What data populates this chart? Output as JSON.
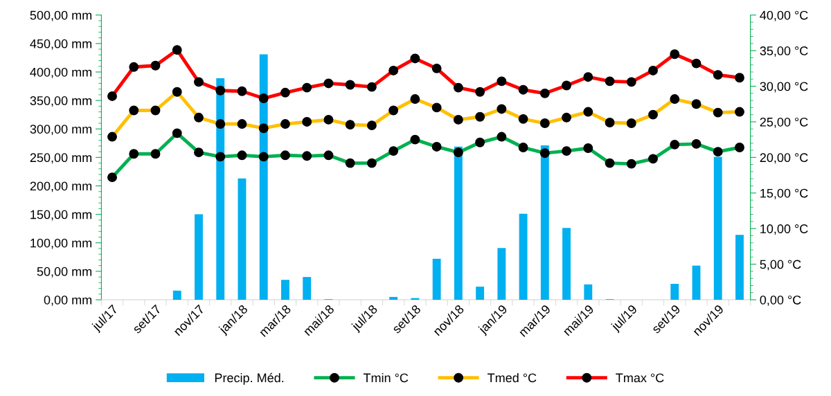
{
  "chart_data": {
    "type": "bar",
    "categories": [
      "jul/17",
      null,
      "set/17",
      null,
      "nov/17",
      null,
      "jan/18",
      null,
      "mar/18",
      null,
      "mai/18",
      null,
      "jul/18",
      null,
      "set/18",
      null,
      "nov/18",
      null,
      "jan/19",
      null,
      "mar/19",
      null,
      "mai/19",
      null,
      "jul/19",
      null,
      "set/19",
      null,
      "nov/19",
      null
    ],
    "series": [
      {
        "name": "Precip. Méd.",
        "color": "#00b0f0",
        "values": [
          0,
          0,
          0,
          16,
          150,
          389,
          213,
          431,
          35,
          40,
          1,
          0,
          0,
          5,
          3,
          72,
          269,
          23,
          91,
          151,
          271,
          126,
          27,
          1,
          0,
          0,
          28,
          60,
          251,
          114
        ]
      },
      {
        "name": "Tmin °C",
        "type": "line",
        "axis": "y2",
        "color": "#00b050",
        "values": [
          17.2,
          20.5,
          20.5,
          23.4,
          20.7,
          20.1,
          20.3,
          20.1,
          20.3,
          20.2,
          20.3,
          19.2,
          19.2,
          20.9,
          22.5,
          21.5,
          20.7,
          22.1,
          22.9,
          21.4,
          20.6,
          20.9,
          21.3,
          19.2,
          19.1,
          19.8,
          21.8,
          21.9,
          20.8,
          21.4
        ]
      },
      {
        "name": "Tmed °C",
        "type": "line",
        "axis": "y2",
        "color": "#ffc000",
        "values": [
          22.9,
          26.6,
          26.6,
          29.2,
          25.6,
          24.7,
          24.7,
          24.1,
          24.7,
          25.0,
          25.3,
          24.6,
          24.5,
          26.6,
          28.2,
          27.0,
          25.3,
          25.7,
          26.8,
          25.4,
          24.8,
          25.6,
          26.4,
          24.9,
          24.8,
          26.0,
          28.2,
          27.5,
          26.3,
          26.4
        ]
      },
      {
        "name": "Tmax °C",
        "type": "line",
        "axis": "y2",
        "color": "#ff0000",
        "values": [
          28.6,
          32.7,
          32.9,
          35.1,
          30.6,
          29.4,
          29.3,
          28.3,
          29.1,
          29.8,
          30.4,
          30.2,
          29.9,
          32.2,
          33.9,
          32.5,
          29.8,
          29.2,
          30.7,
          29.5,
          29.0,
          30.1,
          31.3,
          30.7,
          30.6,
          32.2,
          34.5,
          33.2,
          31.6,
          31.2
        ]
      }
    ],
    "ylim": [
      0,
      500
    ],
    "yticks": [
      {
        "value": 0,
        "label": "0,00 mm"
      },
      {
        "value": 50,
        "label": "50,00 mm"
      },
      {
        "value": 100,
        "label": "100,00 mm"
      },
      {
        "value": 150,
        "label": "150,00 mm"
      },
      {
        "value": 200,
        "label": "200,00 mm"
      },
      {
        "value": 250,
        "label": "250,00 mm"
      },
      {
        "value": 300,
        "label": "300,00 mm"
      },
      {
        "value": 350,
        "label": "350,00 mm"
      },
      {
        "value": 400,
        "label": "400,00 mm"
      },
      {
        "value": 450,
        "label": "450,00 mm"
      },
      {
        "value": 500,
        "label": "500,00 mm"
      }
    ],
    "y2lim": [
      0,
      40
    ],
    "y2ticks": [
      {
        "value": 0,
        "label": "0,00 °C"
      },
      {
        "value": 5,
        "label": "5,00 °C"
      },
      {
        "value": 10,
        "label": "10,00 °C"
      },
      {
        "value": 15,
        "label": "15,00 °C"
      },
      {
        "value": 20,
        "label": "20,00 °C"
      },
      {
        "value": 25,
        "label": "25,00 °C"
      },
      {
        "value": 30,
        "label": "30,00 °C"
      },
      {
        "value": 35,
        "label": "35,00 °C"
      },
      {
        "value": 40,
        "label": "40,00 °C"
      }
    ],
    "marker": "circle",
    "line_style": "solid",
    "grid": false,
    "legend": "bottom"
  }
}
